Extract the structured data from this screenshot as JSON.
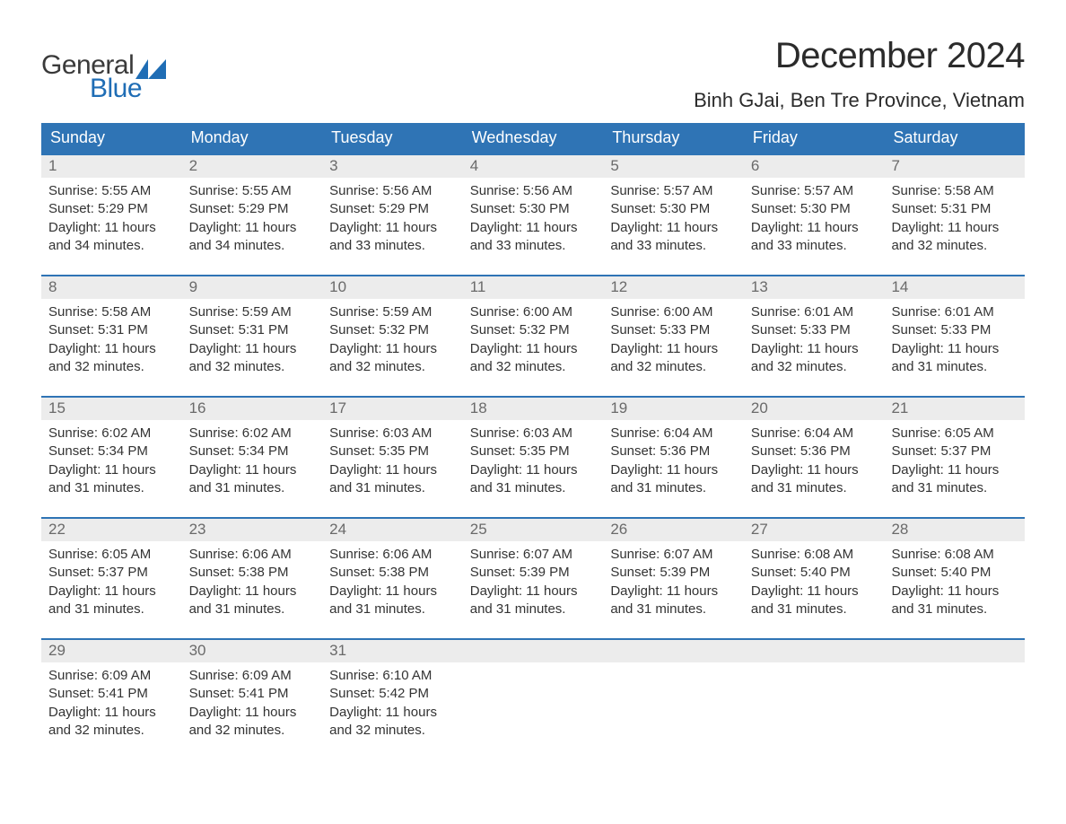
{
  "logo": {
    "text1": "General",
    "text2": "Blue",
    "flag_color": "#1f6db5"
  },
  "title": "December 2024",
  "location": "Binh GJai, Ben Tre Province, Vietnam",
  "colors": {
    "header_bg": "#2f74b5",
    "header_text": "#ffffff",
    "daynum_bg": "#ececec",
    "daynum_text": "#6a6a6a",
    "body_text": "#333333",
    "week_border": "#2f74b5",
    "page_bg": "#ffffff"
  },
  "day_headers": [
    "Sunday",
    "Monday",
    "Tuesday",
    "Wednesday",
    "Thursday",
    "Friday",
    "Saturday"
  ],
  "weeks": [
    [
      {
        "n": "1",
        "sr": "Sunrise: 5:55 AM",
        "ss": "Sunset: 5:29 PM",
        "d1": "Daylight: 11 hours",
        "d2": "and 34 minutes."
      },
      {
        "n": "2",
        "sr": "Sunrise: 5:55 AM",
        "ss": "Sunset: 5:29 PM",
        "d1": "Daylight: 11 hours",
        "d2": "and 34 minutes."
      },
      {
        "n": "3",
        "sr": "Sunrise: 5:56 AM",
        "ss": "Sunset: 5:29 PM",
        "d1": "Daylight: 11 hours",
        "d2": "and 33 minutes."
      },
      {
        "n": "4",
        "sr": "Sunrise: 5:56 AM",
        "ss": "Sunset: 5:30 PM",
        "d1": "Daylight: 11 hours",
        "d2": "and 33 minutes."
      },
      {
        "n": "5",
        "sr": "Sunrise: 5:57 AM",
        "ss": "Sunset: 5:30 PM",
        "d1": "Daylight: 11 hours",
        "d2": "and 33 minutes."
      },
      {
        "n": "6",
        "sr": "Sunrise: 5:57 AM",
        "ss": "Sunset: 5:30 PM",
        "d1": "Daylight: 11 hours",
        "d2": "and 33 minutes."
      },
      {
        "n": "7",
        "sr": "Sunrise: 5:58 AM",
        "ss": "Sunset: 5:31 PM",
        "d1": "Daylight: 11 hours",
        "d2": "and 32 minutes."
      }
    ],
    [
      {
        "n": "8",
        "sr": "Sunrise: 5:58 AM",
        "ss": "Sunset: 5:31 PM",
        "d1": "Daylight: 11 hours",
        "d2": "and 32 minutes."
      },
      {
        "n": "9",
        "sr": "Sunrise: 5:59 AM",
        "ss": "Sunset: 5:31 PM",
        "d1": "Daylight: 11 hours",
        "d2": "and 32 minutes."
      },
      {
        "n": "10",
        "sr": "Sunrise: 5:59 AM",
        "ss": "Sunset: 5:32 PM",
        "d1": "Daylight: 11 hours",
        "d2": "and 32 minutes."
      },
      {
        "n": "11",
        "sr": "Sunrise: 6:00 AM",
        "ss": "Sunset: 5:32 PM",
        "d1": "Daylight: 11 hours",
        "d2": "and 32 minutes."
      },
      {
        "n": "12",
        "sr": "Sunrise: 6:00 AM",
        "ss": "Sunset: 5:33 PM",
        "d1": "Daylight: 11 hours",
        "d2": "and 32 minutes."
      },
      {
        "n": "13",
        "sr": "Sunrise: 6:01 AM",
        "ss": "Sunset: 5:33 PM",
        "d1": "Daylight: 11 hours",
        "d2": "and 32 minutes."
      },
      {
        "n": "14",
        "sr": "Sunrise: 6:01 AM",
        "ss": "Sunset: 5:33 PM",
        "d1": "Daylight: 11 hours",
        "d2": "and 31 minutes."
      }
    ],
    [
      {
        "n": "15",
        "sr": "Sunrise: 6:02 AM",
        "ss": "Sunset: 5:34 PM",
        "d1": "Daylight: 11 hours",
        "d2": "and 31 minutes."
      },
      {
        "n": "16",
        "sr": "Sunrise: 6:02 AM",
        "ss": "Sunset: 5:34 PM",
        "d1": "Daylight: 11 hours",
        "d2": "and 31 minutes."
      },
      {
        "n": "17",
        "sr": "Sunrise: 6:03 AM",
        "ss": "Sunset: 5:35 PM",
        "d1": "Daylight: 11 hours",
        "d2": "and 31 minutes."
      },
      {
        "n": "18",
        "sr": "Sunrise: 6:03 AM",
        "ss": "Sunset: 5:35 PM",
        "d1": "Daylight: 11 hours",
        "d2": "and 31 minutes."
      },
      {
        "n": "19",
        "sr": "Sunrise: 6:04 AM",
        "ss": "Sunset: 5:36 PM",
        "d1": "Daylight: 11 hours",
        "d2": "and 31 minutes."
      },
      {
        "n": "20",
        "sr": "Sunrise: 6:04 AM",
        "ss": "Sunset: 5:36 PM",
        "d1": "Daylight: 11 hours",
        "d2": "and 31 minutes."
      },
      {
        "n": "21",
        "sr": "Sunrise: 6:05 AM",
        "ss": "Sunset: 5:37 PM",
        "d1": "Daylight: 11 hours",
        "d2": "and 31 minutes."
      }
    ],
    [
      {
        "n": "22",
        "sr": "Sunrise: 6:05 AM",
        "ss": "Sunset: 5:37 PM",
        "d1": "Daylight: 11 hours",
        "d2": "and 31 minutes."
      },
      {
        "n": "23",
        "sr": "Sunrise: 6:06 AM",
        "ss": "Sunset: 5:38 PM",
        "d1": "Daylight: 11 hours",
        "d2": "and 31 minutes."
      },
      {
        "n": "24",
        "sr": "Sunrise: 6:06 AM",
        "ss": "Sunset: 5:38 PM",
        "d1": "Daylight: 11 hours",
        "d2": "and 31 minutes."
      },
      {
        "n": "25",
        "sr": "Sunrise: 6:07 AM",
        "ss": "Sunset: 5:39 PM",
        "d1": "Daylight: 11 hours",
        "d2": "and 31 minutes."
      },
      {
        "n": "26",
        "sr": "Sunrise: 6:07 AM",
        "ss": "Sunset: 5:39 PM",
        "d1": "Daylight: 11 hours",
        "d2": "and 31 minutes."
      },
      {
        "n": "27",
        "sr": "Sunrise: 6:08 AM",
        "ss": "Sunset: 5:40 PM",
        "d1": "Daylight: 11 hours",
        "d2": "and 31 minutes."
      },
      {
        "n": "28",
        "sr": "Sunrise: 6:08 AM",
        "ss": "Sunset: 5:40 PM",
        "d1": "Daylight: 11 hours",
        "d2": "and 31 minutes."
      }
    ],
    [
      {
        "n": "29",
        "sr": "Sunrise: 6:09 AM",
        "ss": "Sunset: 5:41 PM",
        "d1": "Daylight: 11 hours",
        "d2": "and 32 minutes."
      },
      {
        "n": "30",
        "sr": "Sunrise: 6:09 AM",
        "ss": "Sunset: 5:41 PM",
        "d1": "Daylight: 11 hours",
        "d2": "and 32 minutes."
      },
      {
        "n": "31",
        "sr": "Sunrise: 6:10 AM",
        "ss": "Sunset: 5:42 PM",
        "d1": "Daylight: 11 hours",
        "d2": "and 32 minutes."
      },
      {
        "empty": true
      },
      {
        "empty": true
      },
      {
        "empty": true
      },
      {
        "empty": true
      }
    ]
  ]
}
